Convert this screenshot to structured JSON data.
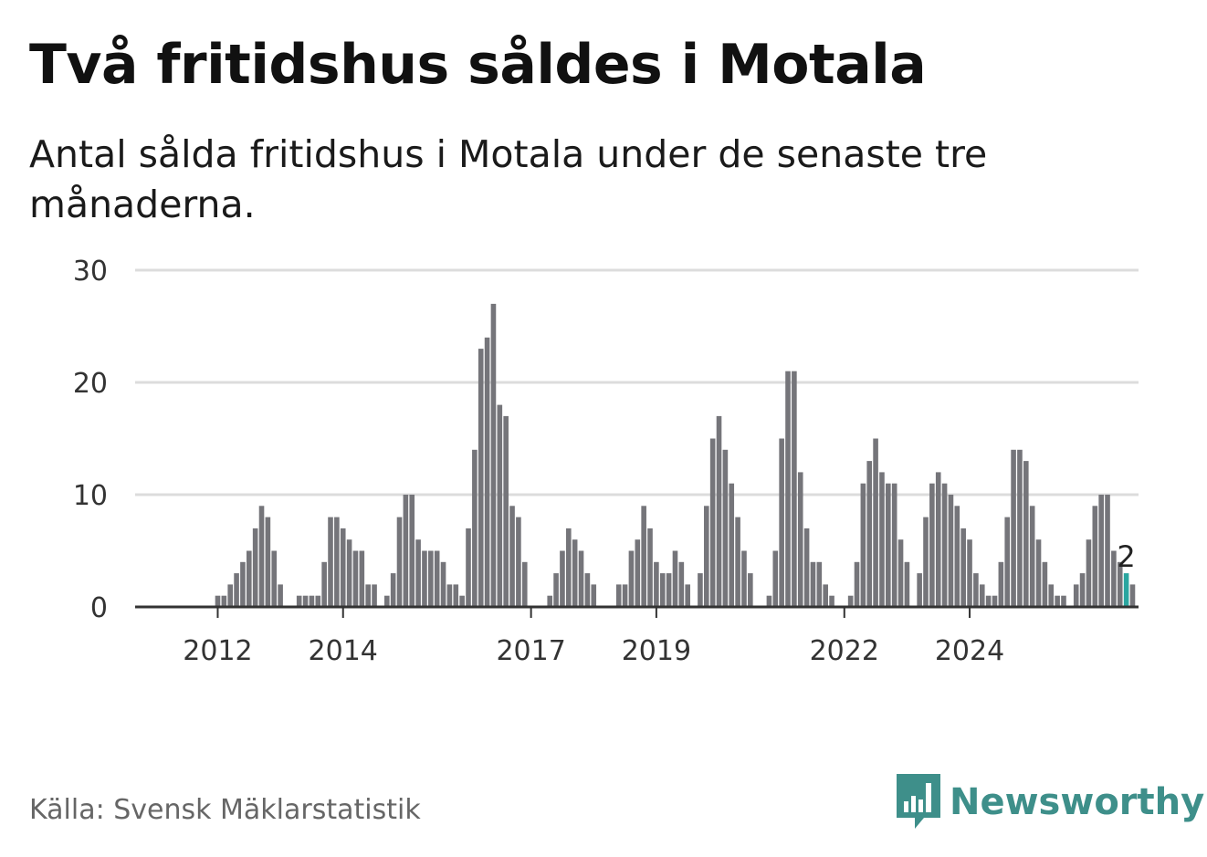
{
  "header": {
    "title": "Två fritidshus såldes i Motala",
    "subtitle": "Antal sålda fritidshus i Motala under de senaste tre månaderna."
  },
  "footer": {
    "source": "Källa: Svensk Mäklarstatistik",
    "brand": "Newsworthy"
  },
  "colors": {
    "bar": "#75757a",
    "highlight": "#2aa6a0",
    "grid": "#dcdcdc",
    "axis": "#333333",
    "brand": "#3e8f8a"
  },
  "icons": {
    "logo": "bar-chart-speech-bubble-icon"
  },
  "chart_data": {
    "type": "bar",
    "title": "Två fritidshus såldes i Motala",
    "xlabel": "",
    "ylabel": "",
    "ylim": [
      0,
      30
    ],
    "yticks": [
      0,
      10,
      20,
      30
    ],
    "xtick_labels": [
      "2012",
      "2014",
      "2017",
      "2019",
      "2022",
      "2024"
    ],
    "xtick_indices": [
      6,
      26,
      56,
      76,
      106,
      126
    ],
    "values": [
      0,
      0,
      0,
      0,
      0,
      0,
      1,
      1,
      2,
      3,
      4,
      5,
      7,
      9,
      8,
      5,
      2,
      0,
      0,
      1,
      1,
      1,
      1,
      4,
      8,
      8,
      7,
      6,
      5,
      5,
      2,
      2,
      0,
      1,
      3,
      8,
      10,
      10,
      6,
      5,
      5,
      5,
      4,
      2,
      2,
      1,
      7,
      14,
      23,
      24,
      27,
      18,
      17,
      9,
      8,
      4,
      0,
      0,
      0,
      1,
      3,
      5,
      7,
      6,
      5,
      3,
      2,
      0,
      0,
      0,
      2,
      2,
      5,
      6,
      9,
      7,
      4,
      3,
      3,
      5,
      4,
      2,
      0,
      3,
      9,
      15,
      17,
      14,
      11,
      8,
      5,
      3,
      0,
      0,
      1,
      5,
      15,
      21,
      21,
      12,
      7,
      4,
      4,
      2,
      1,
      0,
      0,
      1,
      4,
      11,
      13,
      15,
      12,
      11,
      11,
      6,
      4,
      0,
      3,
      8,
      11,
      12,
      11,
      10,
      9,
      7,
      6,
      3,
      2,
      1,
      1,
      4,
      8,
      14,
      14,
      13,
      9,
      6,
      4,
      2,
      1,
      1,
      0,
      2,
      3,
      6,
      9,
      10,
      10,
      5,
      4,
      3,
      2
    ],
    "highlight_index": 151,
    "last_value_label": "2"
  }
}
